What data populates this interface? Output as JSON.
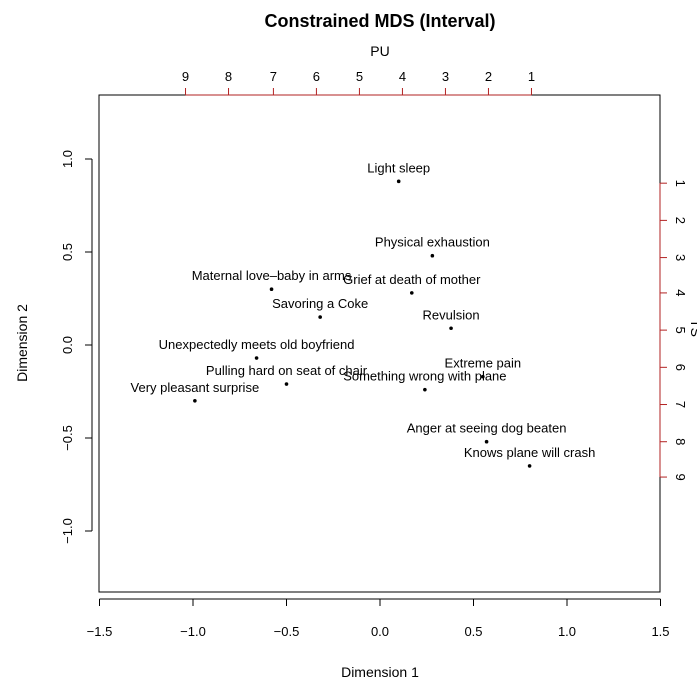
{
  "chart_data": {
    "type": "scatter",
    "title": "Constrained MDS (Interval)",
    "xlabel": "Dimension 1",
    "ylabel": "Dimension 2",
    "xlim": [
      -1.5,
      1.5
    ],
    "ylim": [
      -1.3,
      1.3
    ],
    "xticks": [
      -1.5,
      -1.0,
      -0.5,
      0.0,
      0.5,
      1.0,
      1.5
    ],
    "xtick_labels": [
      "−1.5",
      "−1.0",
      "−0.5",
      "0.0",
      "0.5",
      "1.0",
      "1.5"
    ],
    "yticks": [
      -1.0,
      -0.5,
      0.0,
      0.5,
      1.0
    ],
    "ytick_labels": [
      "−1.0",
      "−0.5",
      "0.0",
      "0.5",
      "1.0"
    ],
    "grid": false,
    "points": [
      {
        "label": "Light sleep",
        "x": 0.1,
        "y": 0.88
      },
      {
        "label": "Physical exhaustion",
        "x": 0.28,
        "y": 0.48
      },
      {
        "label": "Maternal love–baby in arms",
        "x": -0.58,
        "y": 0.3
      },
      {
        "label": "Grief at death of mother",
        "x": 0.17,
        "y": 0.28
      },
      {
        "label": "Savoring a Coke",
        "x": -0.32,
        "y": 0.15
      },
      {
        "label": "Revulsion",
        "x": 0.38,
        "y": 0.09
      },
      {
        "label": "Unexpectedly meets old boyfriend",
        "x": -0.66,
        "y": -0.07
      },
      {
        "label": "Pulling hard on seat of chair",
        "x": -0.5,
        "y": -0.21
      },
      {
        "label": "Extreme pain",
        "x": 0.55,
        "y": -0.17
      },
      {
        "label": "Something wrong with plane",
        "x": 0.24,
        "y": -0.24
      },
      {
        "label": "Very pleasant surprise",
        "x": -0.99,
        "y": -0.3
      },
      {
        "label": "Anger at seeing dog beaten",
        "x": 0.57,
        "y": -0.52
      },
      {
        "label": "Knows plane will crash",
        "x": 0.8,
        "y": -0.65
      }
    ],
    "top_axis": {
      "label": "PU",
      "color": "#b22222",
      "ticks": [
        {
          "label": "9",
          "x": -1.04
        },
        {
          "label": "8",
          "x": -0.81
        },
        {
          "label": "7",
          "x": -0.57
        },
        {
          "label": "6",
          "x": -0.34
        },
        {
          "label": "5",
          "x": -0.11
        },
        {
          "label": "4",
          "x": 0.12
        },
        {
          "label": "3",
          "x": 0.35
        },
        {
          "label": "2",
          "x": 0.58
        },
        {
          "label": "1",
          "x": 0.81
        }
      ]
    },
    "right_axis": {
      "label": "TS",
      "color": "#b22222",
      "ticks": [
        {
          "label": "1",
          "y": 0.87
        },
        {
          "label": "2",
          "y": 0.67
        },
        {
          "label": "3",
          "y": 0.47
        },
        {
          "label": "4",
          "y": 0.28
        },
        {
          "label": "5",
          "y": 0.08
        },
        {
          "label": "6",
          "y": -0.12
        },
        {
          "label": "7",
          "y": -0.32
        },
        {
          "label": "8",
          "y": -0.52
        },
        {
          "label": "9",
          "y": -0.71
        }
      ]
    }
  }
}
